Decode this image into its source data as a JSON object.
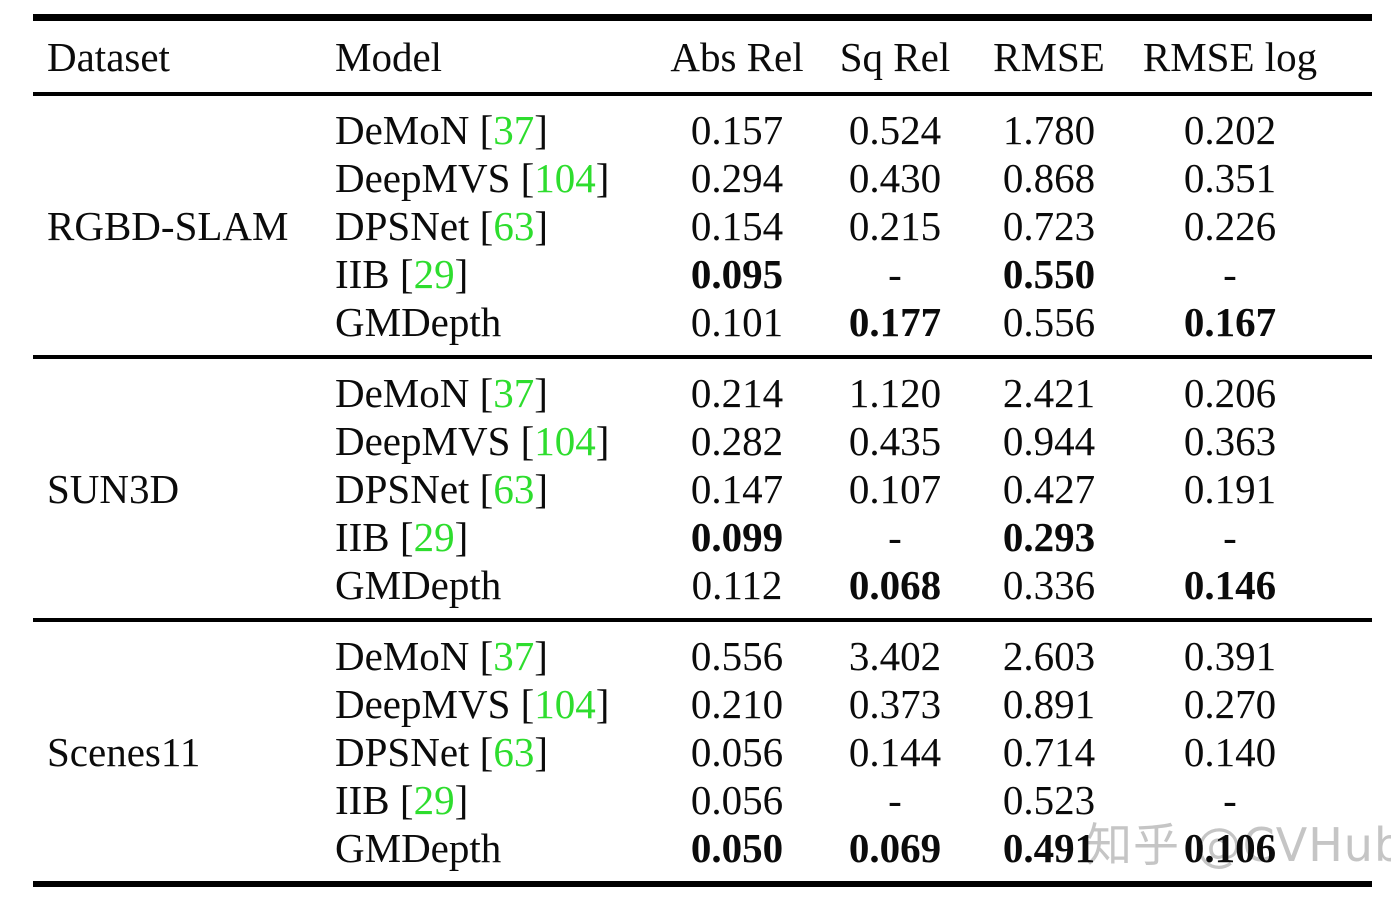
{
  "table": {
    "header": {
      "dataset": "Dataset",
      "model": "Model",
      "metrics": [
        "Abs Rel",
        "Sq Rel",
        "RMSE",
        "RMSE log"
      ]
    },
    "cite_open": "[",
    "cite_close": "]",
    "cite_color": "#2EDD2E",
    "text_color": "#0b0b0b",
    "sections": [
      {
        "dataset": "RGBD-SLAM",
        "rows": [
          {
            "model": "DeMoN",
            "cite": "37",
            "values": [
              "0.157",
              "0.524",
              "1.780",
              "0.202"
            ],
            "bold": [
              false,
              false,
              false,
              false
            ]
          },
          {
            "model": "DeepMVS",
            "cite": "104",
            "values": [
              "0.294",
              "0.430",
              "0.868",
              "0.351"
            ],
            "bold": [
              false,
              false,
              false,
              false
            ]
          },
          {
            "model": "DPSNet",
            "cite": "63",
            "values": [
              "0.154",
              "0.215",
              "0.723",
              "0.226"
            ],
            "bold": [
              false,
              false,
              false,
              false
            ]
          },
          {
            "model": "IIB",
            "cite": "29",
            "values": [
              "0.095",
              "-",
              "0.550",
              "-"
            ],
            "bold": [
              true,
              false,
              true,
              false
            ]
          },
          {
            "model": "GMDepth",
            "cite": "",
            "values": [
              "0.101",
              "0.177",
              "0.556",
              "0.167"
            ],
            "bold": [
              false,
              true,
              false,
              true
            ]
          }
        ]
      },
      {
        "dataset": "SUN3D",
        "rows": [
          {
            "model": "DeMoN",
            "cite": "37",
            "values": [
              "0.214",
              "1.120",
              "2.421",
              "0.206"
            ],
            "bold": [
              false,
              false,
              false,
              false
            ]
          },
          {
            "model": "DeepMVS",
            "cite": "104",
            "values": [
              "0.282",
              "0.435",
              "0.944",
              "0.363"
            ],
            "bold": [
              false,
              false,
              false,
              false
            ]
          },
          {
            "model": "DPSNet",
            "cite": "63",
            "values": [
              "0.147",
              "0.107",
              "0.427",
              "0.191"
            ],
            "bold": [
              false,
              false,
              false,
              false
            ]
          },
          {
            "model": "IIB",
            "cite": "29",
            "values": [
              "0.099",
              "-",
              "0.293",
              "-"
            ],
            "bold": [
              true,
              false,
              true,
              false
            ]
          },
          {
            "model": "GMDepth",
            "cite": "",
            "values": [
              "0.112",
              "0.068",
              "0.336",
              "0.146"
            ],
            "bold": [
              false,
              true,
              false,
              true
            ]
          }
        ]
      },
      {
        "dataset": "Scenes11",
        "rows": [
          {
            "model": "DeMoN",
            "cite": "37",
            "values": [
              "0.556",
              "3.402",
              "2.603",
              "0.391"
            ],
            "bold": [
              false,
              false,
              false,
              false
            ]
          },
          {
            "model": "DeepMVS",
            "cite": "104",
            "values": [
              "0.210",
              "0.373",
              "0.891",
              "0.270"
            ],
            "bold": [
              false,
              false,
              false,
              false
            ]
          },
          {
            "model": "DPSNet",
            "cite": "63",
            "values": [
              "0.056",
              "0.144",
              "0.714",
              "0.140"
            ],
            "bold": [
              false,
              false,
              false,
              false
            ]
          },
          {
            "model": "IIB",
            "cite": "29",
            "values": [
              "0.056",
              "-",
              "0.523",
              "-"
            ],
            "bold": [
              false,
              false,
              false,
              false
            ]
          },
          {
            "model": "GMDepth",
            "cite": "",
            "values": [
              "0.050",
              "0.069",
              "0.491",
              "0.106"
            ],
            "bold": [
              true,
              true,
              true,
              true
            ]
          }
        ]
      }
    ]
  },
  "watermark": {
    "text": "知乎 @CVHub",
    "color": "#c5c5c5"
  }
}
